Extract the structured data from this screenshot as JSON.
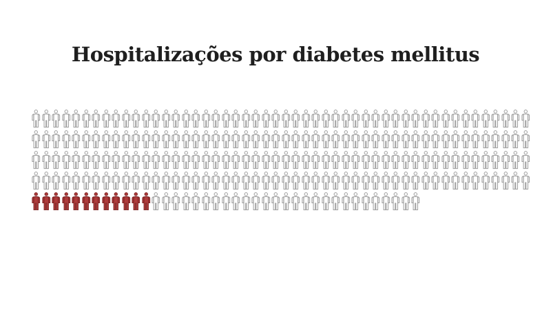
{
  "title": "Hospitalizações por diabetes mellitus",
  "chart_data": {
    "type": "pictogram",
    "title": "Hospitalizações por diabetes mellitus",
    "unit_icon": "person",
    "total_units": 239,
    "highlighted_units": 12,
    "plain_units": 227,
    "icons_per_full_row": 50,
    "rows": [
      {
        "count": 50,
        "highlighted": 0
      },
      {
        "count": 50,
        "highlighted": 0
      },
      {
        "count": 50,
        "highlighted": 0
      },
      {
        "count": 50,
        "highlighted": 0
      },
      {
        "count": 39,
        "highlighted": 12
      }
    ],
    "highlight_location": "start-of-last-row",
    "legend_position": "none",
    "axes": "none",
    "colors": {
      "highlighted_fill": "#ae3b3b",
      "highlighted_stroke": "#7e2525",
      "plain_fill": "#ffffff",
      "plain_stroke": "#9b9b9b",
      "title_color": "#1f1f1f",
      "background": "#ffffff"
    }
  }
}
